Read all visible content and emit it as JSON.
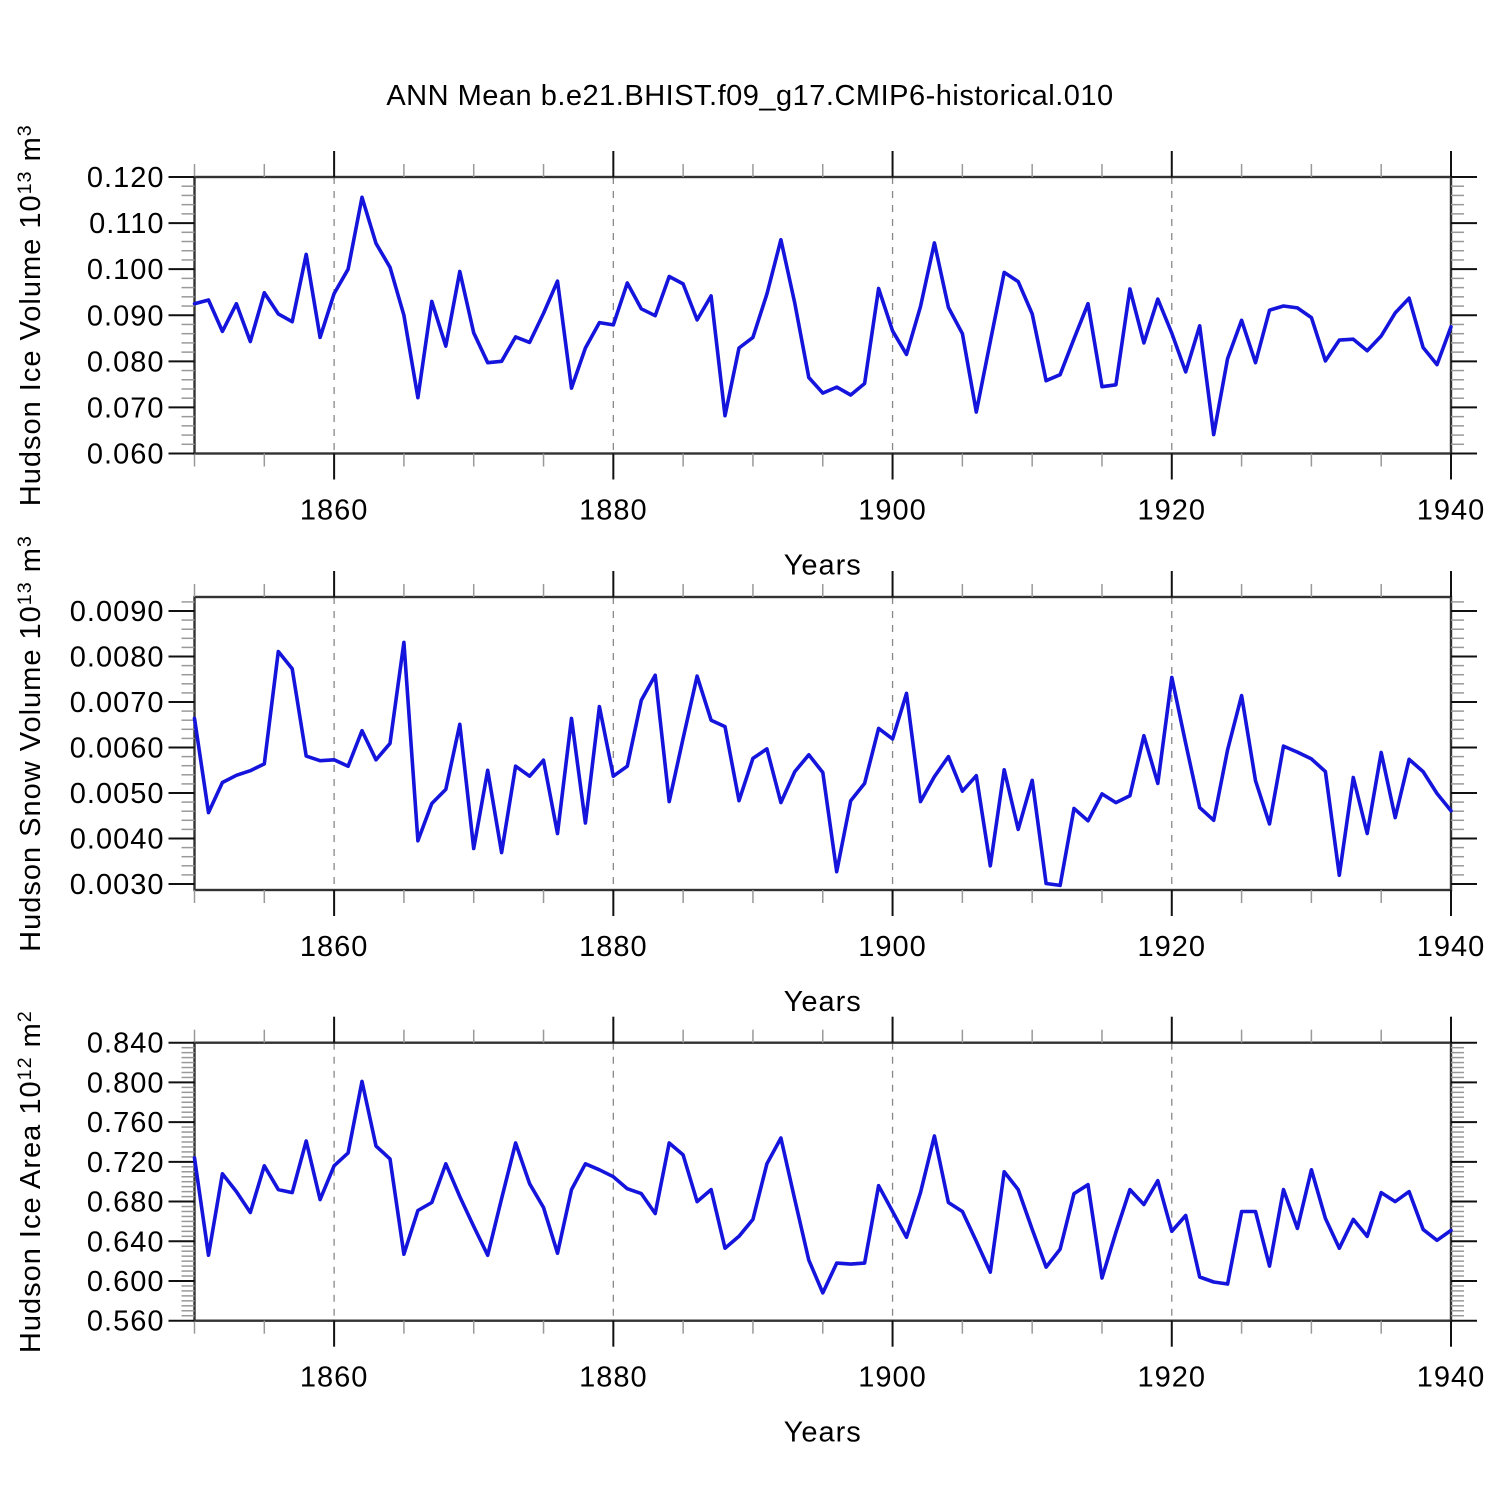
{
  "title": "ANN Mean b.e21.BHIST.f09_g17.CMIP6-historical.010",
  "colors": {
    "background": "#ffffff",
    "line": "#1414dc",
    "grid": "#888888",
    "frame": "#333333",
    "tick_major": "#111111",
    "tick_minor": "#999999",
    "text": "#000000"
  },
  "chart_data": [
    {
      "type": "line",
      "name": "hudson-ice-volume",
      "ylabel_text": "Hudson Ice Volume 10^13 m^3",
      "ylabel_parts": [
        {
          "t": "Hudson Ice Volume 10"
        },
        {
          "t": "13",
          "sup": true
        },
        {
          "t": " m"
        },
        {
          "t": "3",
          "sup": true
        }
      ],
      "xlabel": "Years",
      "xlim": [
        1850,
        1940
      ],
      "ylim": [
        0.06,
        0.12
      ],
      "frame_ylim": [
        0.06,
        0.12
      ],
      "yticks": [
        0.06,
        0.07,
        0.08,
        0.09,
        0.1,
        0.11,
        0.12
      ],
      "ytick_labels": [
        "0.060",
        "0.070",
        "0.080",
        "0.090",
        "0.100",
        "0.110",
        "0.120"
      ],
      "y_minor_step": 0.002,
      "xticks": [
        1860,
        1880,
        1900,
        1920,
        1940
      ],
      "xtick_labels": [
        "1860",
        "1880",
        "1900",
        "1920",
        "1940"
      ],
      "x_minor_step": 5,
      "grid_x": [
        1860,
        1880,
        1900,
        1920
      ],
      "x_start": 1850,
      "values": [
        0.0925,
        0.0933,
        0.0865,
        0.0925,
        0.0843,
        0.0949,
        0.0903,
        0.0886,
        0.1032,
        0.0852,
        0.0947,
        0.1,
        0.1156,
        0.1056,
        0.1004,
        0.09,
        0.0721,
        0.093,
        0.0833,
        0.0995,
        0.0862,
        0.0797,
        0.08,
        0.0853,
        0.0841,
        0.0904,
        0.0974,
        0.0742,
        0.0829,
        0.0884,
        0.0879,
        0.097,
        0.0914,
        0.0899,
        0.0984,
        0.0968,
        0.089,
        0.0942,
        0.0682,
        0.0829,
        0.0852,
        0.0946,
        0.1064,
        0.0926,
        0.0765,
        0.0731,
        0.0744,
        0.0727,
        0.0752,
        0.0958,
        0.0866,
        0.0815,
        0.0919,
        0.1057,
        0.0917,
        0.086,
        0.069,
        0.0843,
        0.0993,
        0.0973,
        0.0903,
        0.0758,
        0.0771,
        0.0849,
        0.0925,
        0.0745,
        0.0749,
        0.0957,
        0.084,
        0.0935,
        0.0861,
        0.0777,
        0.0877,
        0.0641,
        0.0806,
        0.0889,
        0.0797,
        0.0911,
        0.092,
        0.0916,
        0.0895,
        0.0801,
        0.0846,
        0.0848,
        0.0823,
        0.0855,
        0.0905,
        0.0937,
        0.083,
        0.0793,
        0.0875
      ]
    },
    {
      "type": "line",
      "name": "hudson-snow-volume",
      "ylabel_text": "Hudson Snow Volume 10^13 m^3",
      "ylabel_parts": [
        {
          "t": "Hudson Snow Volume 10"
        },
        {
          "t": "13",
          "sup": true
        },
        {
          "t": " m"
        },
        {
          "t": "3",
          "sup": true
        }
      ],
      "xlabel": "Years",
      "xlim": [
        1850,
        1940
      ],
      "ylim": [
        0.003,
        0.009
      ],
      "frame_ylim": [
        0.002868,
        0.009308
      ],
      "yticks": [
        0.003,
        0.004,
        0.005,
        0.006,
        0.007,
        0.008,
        0.009
      ],
      "ytick_labels": [
        "0.0030",
        "0.0040",
        "0.0050",
        "0.0060",
        "0.0070",
        "0.0080",
        "0.0090"
      ],
      "y_minor_step": 0.0002,
      "xticks": [
        1860,
        1880,
        1900,
        1920,
        1940
      ],
      "xtick_labels": [
        "1860",
        "1880",
        "1900",
        "1920",
        "1940"
      ],
      "x_minor_step": 5,
      "grid_x": [
        1860,
        1880,
        1900,
        1920
      ],
      "x_start": 1850,
      "values": [
        0.00664,
        0.00457,
        0.00523,
        0.00539,
        0.00549,
        0.00564,
        0.00811,
        0.00773,
        0.00581,
        0.00571,
        0.00573,
        0.00559,
        0.00637,
        0.00573,
        0.00609,
        0.00831,
        0.00395,
        0.00477,
        0.00508,
        0.00651,
        0.00378,
        0.0055,
        0.00369,
        0.00559,
        0.00537,
        0.00572,
        0.00411,
        0.00664,
        0.00434,
        0.0069,
        0.00537,
        0.00559,
        0.00704,
        0.00759,
        0.00481,
        0.0062,
        0.00757,
        0.0066,
        0.00646,
        0.00483,
        0.00576,
        0.00597,
        0.00479,
        0.00547,
        0.00584,
        0.00545,
        0.00327,
        0.00483,
        0.00521,
        0.00642,
        0.00619,
        0.00719,
        0.00481,
        0.00536,
        0.0058,
        0.00504,
        0.00538,
        0.0034,
        0.00551,
        0.0042,
        0.00528,
        0.00301,
        0.00297,
        0.00466,
        0.00439,
        0.00498,
        0.00479,
        0.00494,
        0.00626,
        0.00521,
        0.00754,
        0.00609,
        0.00468,
        0.0044,
        0.00595,
        0.00714,
        0.00527,
        0.00432,
        0.00603,
        0.0059,
        0.00575,
        0.00547,
        0.00319,
        0.00534,
        0.00411,
        0.00589,
        0.00446,
        0.00574,
        0.00547,
        0.00499,
        0.00461
      ]
    },
    {
      "type": "line",
      "name": "hudson-ice-area",
      "ylabel_text": "Hudson Ice Area 10^12 m^2",
      "ylabel_parts": [
        {
          "t": "Hudson Ice Area 10"
        },
        {
          "t": "12",
          "sup": true
        },
        {
          "t": " m"
        },
        {
          "t": "2",
          "sup": true
        }
      ],
      "xlabel": "Years",
      "xlim": [
        1850,
        1940
      ],
      "ylim": [
        0.56,
        0.84
      ],
      "frame_ylim": [
        0.56,
        0.84
      ],
      "yticks": [
        0.56,
        0.6,
        0.64,
        0.68,
        0.72,
        0.76,
        0.8,
        0.84
      ],
      "ytick_labels": [
        "0.560",
        "0.600",
        "0.640",
        "0.680",
        "0.720",
        "0.760",
        "0.800",
        "0.840"
      ],
      "y_minor_step": 0.005,
      "xticks": [
        1860,
        1880,
        1900,
        1920,
        1940
      ],
      "xtick_labels": [
        "1860",
        "1880",
        "1900",
        "1920",
        "1940"
      ],
      "x_minor_step": 5,
      "grid_x": [
        1860,
        1880,
        1900,
        1920
      ],
      "x_start": 1850,
      "values": [
        0.724,
        0.626,
        0.708,
        0.69,
        0.669,
        0.716,
        0.692,
        0.689,
        0.741,
        0.682,
        0.716,
        0.729,
        0.801,
        0.736,
        0.723,
        0.627,
        0.671,
        0.679,
        0.718,
        0.685,
        0.655,
        0.626,
        0.683,
        0.739,
        0.698,
        0.674,
        0.628,
        0.692,
        0.718,
        0.712,
        0.705,
        0.693,
        0.688,
        0.668,
        0.739,
        0.727,
        0.68,
        0.692,
        0.633,
        0.645,
        0.662,
        0.718,
        0.744,
        0.682,
        0.621,
        0.588,
        0.618,
        0.617,
        0.618,
        0.696,
        0.67,
        0.644,
        0.689,
        0.746,
        0.679,
        0.67,
        0.64,
        0.609,
        0.71,
        0.692,
        0.652,
        0.614,
        0.632,
        0.688,
        0.697,
        0.603,
        0.649,
        0.692,
        0.677,
        0.701,
        0.65,
        0.666,
        0.604,
        0.599,
        0.597,
        0.67,
        0.67,
        0.615,
        0.692,
        0.653,
        0.712,
        0.663,
        0.633,
        0.662,
        0.645,
        0.689,
        0.68,
        0.69,
        0.652,
        0.641,
        0.651
      ]
    }
  ]
}
